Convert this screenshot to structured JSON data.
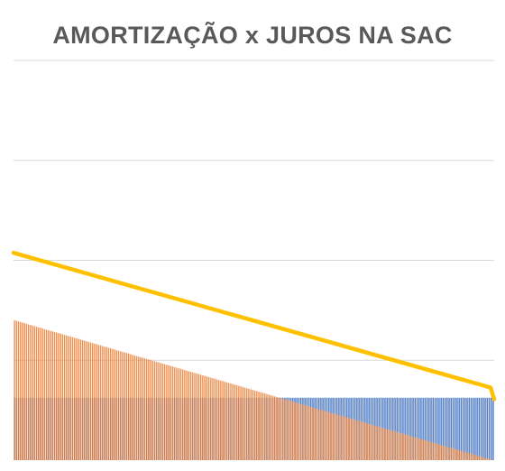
{
  "chart_data": {
    "type": "bar",
    "title": "AMORTIZAÇÃO x JUROS NA SAC",
    "periods": 240,
    "ylim": [
      0,
      8
    ],
    "grid": true,
    "legend": "none",
    "series": [
      {
        "kind": "bar",
        "color": "#4472C4",
        "constant_value": 1.25
      },
      {
        "kind": "bar",
        "color": "#ED7D31",
        "start_value": 2.8,
        "end_value": 0.0
      },
      {
        "kind": "line",
        "color": "#FFC000",
        "start_value": 4.15,
        "end_value": 1.4
      }
    ]
  }
}
